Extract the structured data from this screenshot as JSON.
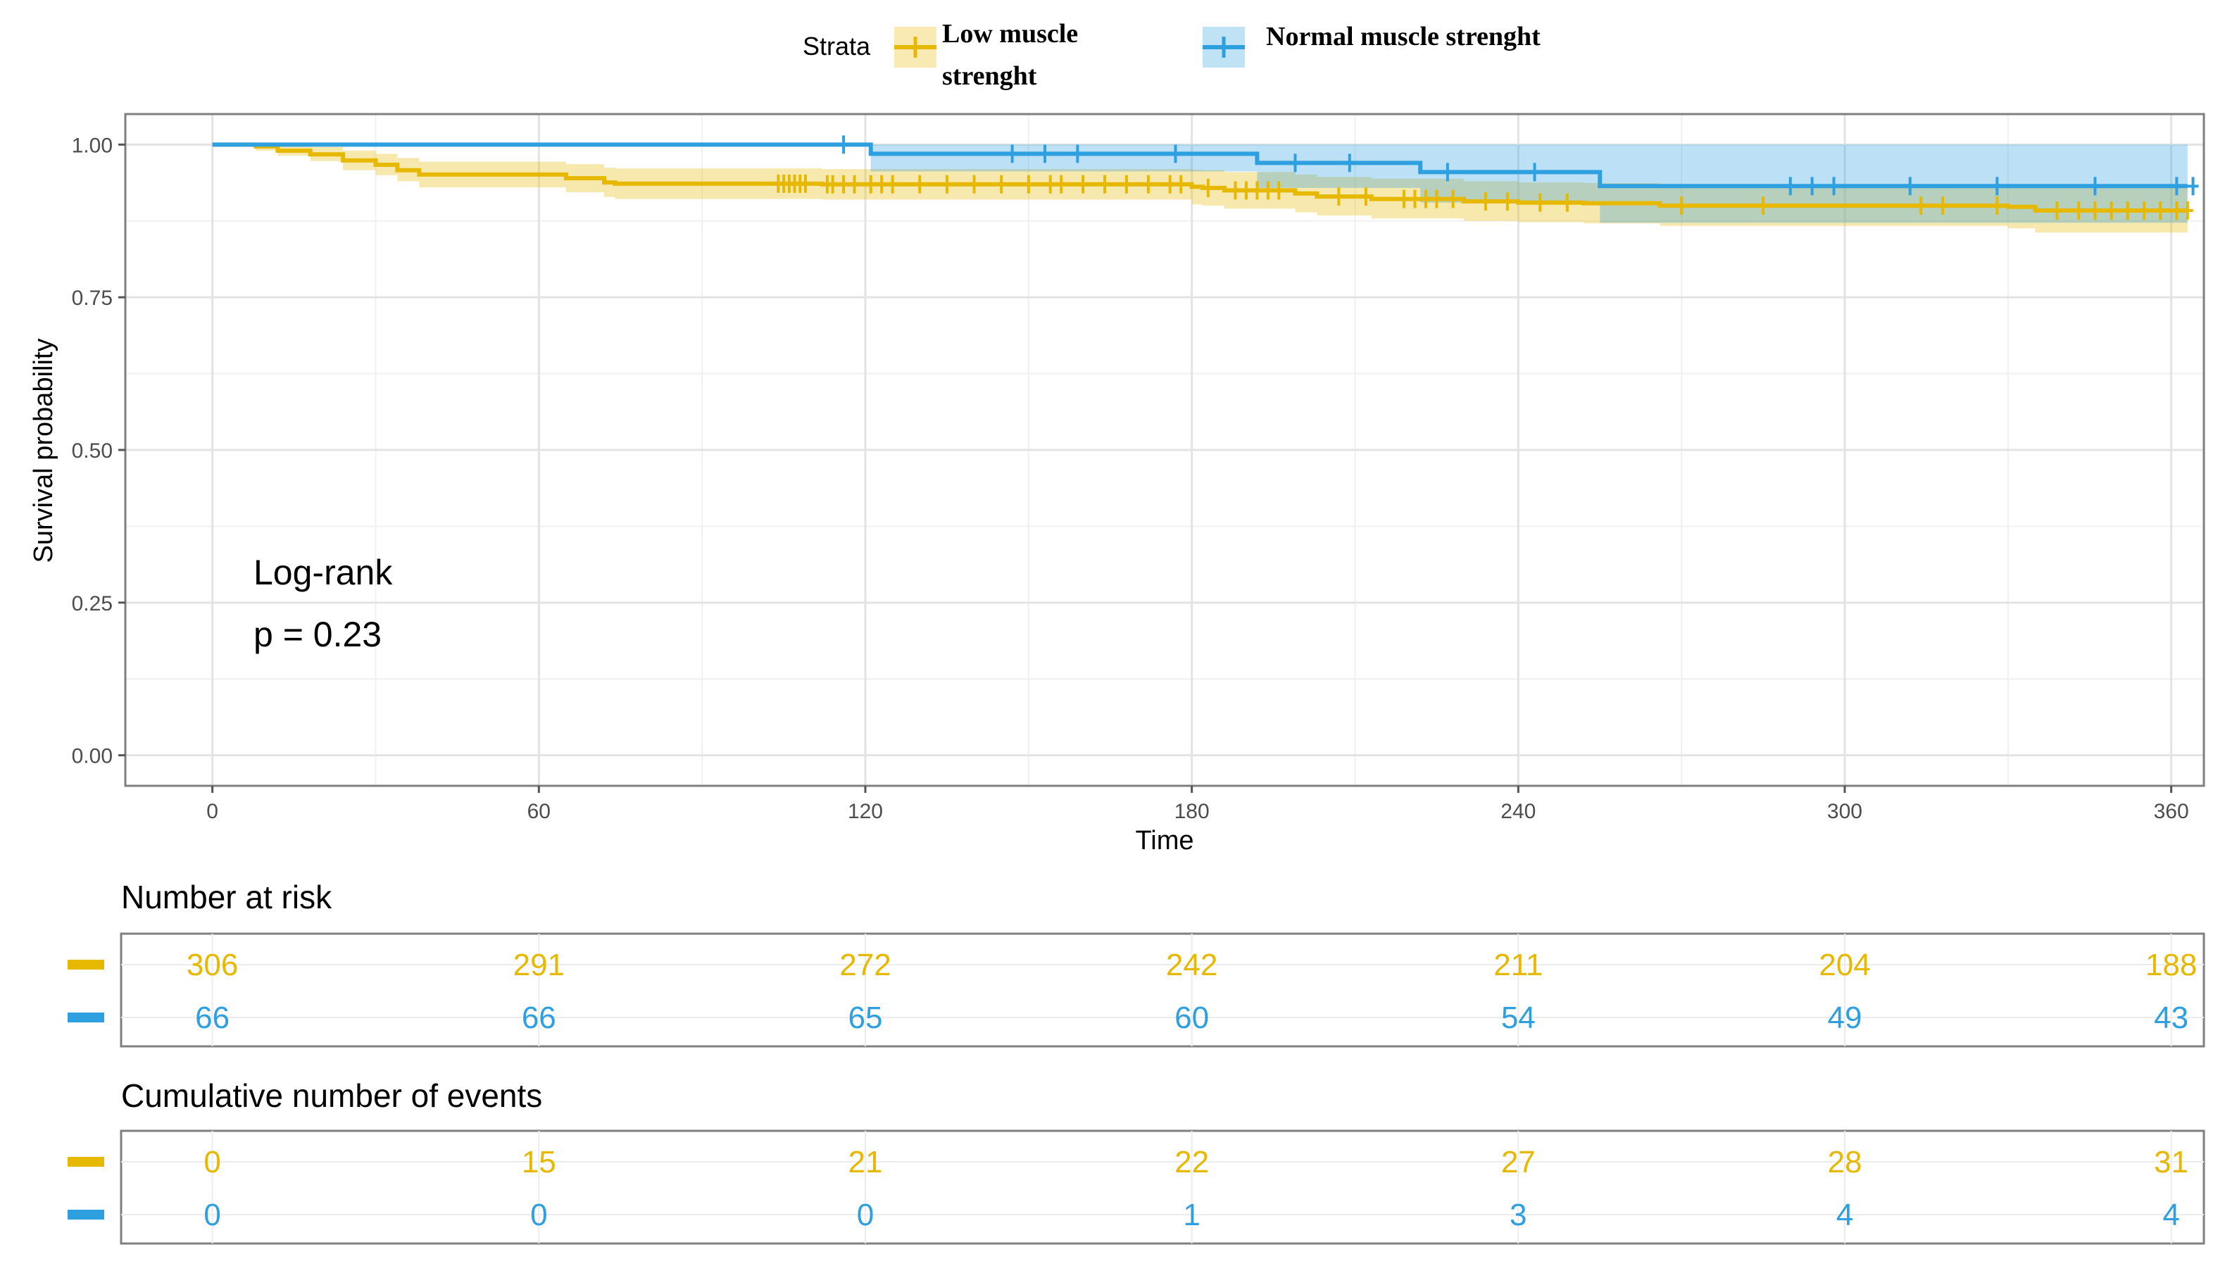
{
  "chart_data": {
    "type": "line",
    "subtype": "kaplan-meier",
    "legend": {
      "title": "Strata",
      "entries": [
        {
          "label_lines": [
            "Low muscle",
            "strenght"
          ]
        },
        {
          "label_lines": [
            "Normal muscle strenght"
          ]
        }
      ],
      "placement": "top-center"
    },
    "xlabel": "Time",
    "ylabel": "Survival probability",
    "xlim": [
      -16,
      366
    ],
    "ylim": [
      -0.05,
      1.05
    ],
    "xticks": [
      0,
      60,
      120,
      180,
      240,
      300,
      360
    ],
    "yticks": [
      0.0,
      0.25,
      0.5,
      0.75,
      1.0
    ],
    "ytick_labels": [
      "0.00",
      "0.25",
      "0.50",
      "0.75",
      "1.00"
    ],
    "grid": true,
    "annotation": [
      "Log-rank",
      "p = 0.23"
    ],
    "series": [
      {
        "name": "Low muscle strenght",
        "color": "#E7B800",
        "steps": [
          [
            0,
            1.0
          ],
          [
            8,
            0.997
          ],
          [
            12,
            0.99
          ],
          [
            18,
            0.984
          ],
          [
            24,
            0.974
          ],
          [
            30,
            0.967
          ],
          [
            34,
            0.958
          ],
          [
            38,
            0.951
          ],
          [
            60,
            0.951
          ],
          [
            65,
            0.945
          ],
          [
            72,
            0.938
          ],
          [
            74,
            0.936
          ],
          [
            109,
            0.936
          ],
          [
            112,
            0.935
          ],
          [
            150,
            0.935
          ],
          [
            180,
            0.931
          ],
          [
            182,
            0.929
          ],
          [
            186,
            0.925
          ],
          [
            199,
            0.92
          ],
          [
            203,
            0.915
          ],
          [
            213,
            0.911
          ],
          [
            230,
            0.907
          ],
          [
            240,
            0.905
          ],
          [
            252,
            0.904
          ],
          [
            266,
            0.9
          ],
          [
            330,
            0.898
          ],
          [
            335,
            0.892
          ],
          [
            363,
            0.892
          ]
        ],
        "lower": [
          [
            0,
            1.0
          ],
          [
            8,
            0.99
          ],
          [
            12,
            0.982
          ],
          [
            18,
            0.973
          ],
          [
            24,
            0.958
          ],
          [
            30,
            0.95
          ],
          [
            34,
            0.94
          ],
          [
            38,
            0.93
          ],
          [
            60,
            0.93
          ],
          [
            65,
            0.922
          ],
          [
            72,
            0.914
          ],
          [
            74,
            0.911
          ],
          [
            109,
            0.911
          ],
          [
            112,
            0.91
          ],
          [
            150,
            0.91
          ],
          [
            180,
            0.902
          ],
          [
            182,
            0.9
          ],
          [
            186,
            0.895
          ],
          [
            199,
            0.889
          ],
          [
            203,
            0.884
          ],
          [
            213,
            0.879
          ],
          [
            230,
            0.875
          ],
          [
            240,
            0.873
          ],
          [
            252,
            0.871
          ],
          [
            266,
            0.867
          ],
          [
            330,
            0.863
          ],
          [
            335,
            0.856
          ],
          [
            363,
            0.856
          ]
        ],
        "upper": [
          [
            0,
            1.0
          ],
          [
            8,
            1.0
          ],
          [
            12,
            1.0
          ],
          [
            18,
            0.996
          ],
          [
            24,
            0.99
          ],
          [
            30,
            0.985
          ],
          [
            34,
            0.978
          ],
          [
            38,
            0.972
          ],
          [
            60,
            0.972
          ],
          [
            65,
            0.968
          ],
          [
            72,
            0.962
          ],
          [
            74,
            0.961
          ],
          [
            109,
            0.961
          ],
          [
            112,
            0.96
          ],
          [
            150,
            0.96
          ],
          [
            180,
            0.959
          ],
          [
            182,
            0.958
          ],
          [
            186,
            0.955
          ],
          [
            199,
            0.951
          ],
          [
            203,
            0.947
          ],
          [
            213,
            0.944
          ],
          [
            230,
            0.94
          ],
          [
            240,
            0.938
          ],
          [
            252,
            0.937
          ],
          [
            266,
            0.934
          ],
          [
            330,
            0.934
          ],
          [
            335,
            0.929
          ],
          [
            363,
            0.929
          ]
        ],
        "censored": [
          [
            104,
            0.936
          ],
          [
            105,
            0.936
          ],
          [
            106,
            0.936
          ],
          [
            107,
            0.936
          ],
          [
            108,
            0.936
          ],
          [
            109,
            0.936
          ],
          [
            113,
            0.935
          ],
          [
            114,
            0.935
          ],
          [
            116,
            0.935
          ],
          [
            118,
            0.935
          ],
          [
            121,
            0.935
          ],
          [
            123,
            0.935
          ],
          [
            125,
            0.935
          ],
          [
            130,
            0.935
          ],
          [
            135,
            0.935
          ],
          [
            140,
            0.935
          ],
          [
            145,
            0.935
          ],
          [
            150,
            0.935
          ],
          [
            154,
            0.935
          ],
          [
            156,
            0.935
          ],
          [
            160,
            0.935
          ],
          [
            164,
            0.935
          ],
          [
            168,
            0.935
          ],
          [
            172,
            0.935
          ],
          [
            176,
            0.935
          ],
          [
            178,
            0.935
          ],
          [
            183,
            0.929
          ],
          [
            188,
            0.925
          ],
          [
            190,
            0.925
          ],
          [
            192,
            0.925
          ],
          [
            194,
            0.925
          ],
          [
            196,
            0.925
          ],
          [
            207,
            0.915
          ],
          [
            212,
            0.915
          ],
          [
            219,
            0.911
          ],
          [
            221,
            0.911
          ],
          [
            223,
            0.911
          ],
          [
            225,
            0.911
          ],
          [
            228,
            0.911
          ],
          [
            234,
            0.907
          ],
          [
            238,
            0.907
          ],
          [
            244,
            0.905
          ],
          [
            249,
            0.905
          ],
          [
            270,
            0.9
          ],
          [
            285,
            0.9
          ],
          [
            314,
            0.9
          ],
          [
            318,
            0.9
          ],
          [
            328,
            0.9
          ],
          [
            339,
            0.892
          ],
          [
            343,
            0.892
          ],
          [
            346,
            0.892
          ],
          [
            349,
            0.892
          ],
          [
            352,
            0.892
          ],
          [
            355,
            0.892
          ],
          [
            358,
            0.892
          ],
          [
            361,
            0.892
          ],
          [
            363,
            0.892
          ]
        ]
      },
      {
        "name": "Normal muscle strenght",
        "color": "#2E9FDF",
        "steps": [
          [
            0,
            1.0
          ],
          [
            121,
            0.985
          ],
          [
            192,
            0.97
          ],
          [
            222,
            0.955
          ],
          [
            255,
            0.932
          ],
          [
            363,
            0.932
          ]
        ],
        "lower": [
          [
            0,
            1.0
          ],
          [
            121,
            0.956
          ],
          [
            192,
            0.929
          ],
          [
            222,
            0.905
          ],
          [
            255,
            0.872
          ],
          [
            363,
            0.872
          ]
        ],
        "upper": [
          [
            0,
            1.0
          ],
          [
            363,
            1.0
          ]
        ],
        "censored": [
          [
            116,
            1.0
          ],
          [
            147,
            0.985
          ],
          [
            153,
            0.985
          ],
          [
            159,
            0.985
          ],
          [
            177,
            0.985
          ],
          [
            199,
            0.97
          ],
          [
            209,
            0.97
          ],
          [
            227,
            0.955
          ],
          [
            243,
            0.955
          ],
          [
            290,
            0.932
          ],
          [
            294,
            0.932
          ],
          [
            298,
            0.932
          ],
          [
            312,
            0.932
          ],
          [
            328,
            0.932
          ],
          [
            346,
            0.932
          ],
          [
            361,
            0.932
          ],
          [
            364,
            0.932
          ]
        ]
      }
    ]
  },
  "risk_table": {
    "title": "Number at risk",
    "rows": [
      {
        "color": "#E7B800",
        "values": [
          "306",
          "291",
          "272",
          "242",
          "211",
          "204",
          "188"
        ]
      },
      {
        "color": "#2E9FDF",
        "values": [
          "66",
          "66",
          "65",
          "60",
          "54",
          "49",
          "43"
        ]
      }
    ]
  },
  "events_table": {
    "title": "Cumulative number of events",
    "rows": [
      {
        "color": "#E7B800",
        "values": [
          "0",
          "15",
          "21",
          "22",
          "27",
          "28",
          "31"
        ]
      },
      {
        "color": "#2E9FDF",
        "values": [
          "0",
          "0",
          "0",
          "1",
          "3",
          "4",
          "4"
        ]
      }
    ]
  }
}
